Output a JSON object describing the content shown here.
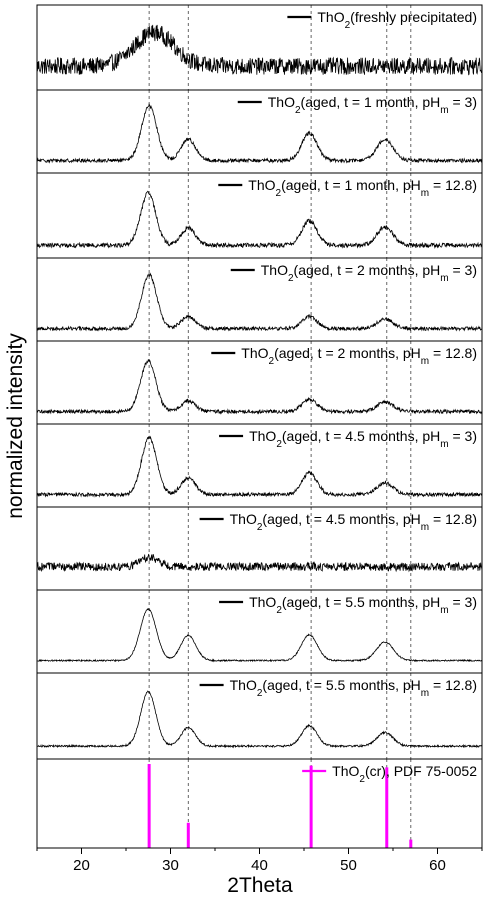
{
  "chart_data": {
    "type": "line",
    "xlabel": "2Theta",
    "ylabel": "normalized intensity",
    "xlim": [
      15,
      65
    ],
    "x_ticks": [
      20,
      30,
      40,
      50,
      60
    ],
    "reference_lines_x": [
      27.6,
      32.0,
      45.8,
      54.3,
      57.0
    ],
    "series": [
      {
        "name": "ThO2(freshly precipitated)",
        "label_parts": [
          "ThO",
          "2",
          "(freshly precipitated)"
        ],
        "peaks": [
          {
            "pos": 28.2,
            "height": 0.55,
            "width": 2.2
          }
        ],
        "noise": 0.14,
        "baseline": 0.28
      },
      {
        "name": "ThO2(aged, t = 1 month, pHm = 3)",
        "label_parts": [
          "ThO",
          "2",
          "(aged, t = 1 month, pH",
          "m",
          " = 3)"
        ],
        "peaks": [
          {
            "pos": 27.6,
            "height": 0.92,
            "width": 0.85
          },
          {
            "pos": 32.0,
            "height": 0.36,
            "width": 0.8
          },
          {
            "pos": 45.6,
            "height": 0.46,
            "width": 0.85
          },
          {
            "pos": 54.1,
            "height": 0.36,
            "width": 0.9
          }
        ],
        "noise": 0.03,
        "baseline": 0.15
      },
      {
        "name": "ThO2(aged, t = 1 month, pHm = 12.8)",
        "label_parts": [
          "ThO",
          "2",
          "(aged, t = 1 month, pH",
          "m",
          " = 12.8)"
        ],
        "peaks": [
          {
            "pos": 27.5,
            "height": 0.85,
            "width": 0.85
          },
          {
            "pos": 32.0,
            "height": 0.28,
            "width": 0.8
          },
          {
            "pos": 45.6,
            "height": 0.4,
            "width": 0.85
          },
          {
            "pos": 54.1,
            "height": 0.3,
            "width": 0.9
          }
        ],
        "noise": 0.035,
        "baseline": 0.15
      },
      {
        "name": "ThO2(aged, t = 2 months, pHm = 3)",
        "label_parts": [
          "ThO",
          "2",
          "(aged, t = 2 months, pH",
          "m",
          " = 3)"
        ],
        "peaks": [
          {
            "pos": 27.6,
            "height": 0.9,
            "width": 0.85
          },
          {
            "pos": 32.0,
            "height": 0.2,
            "width": 0.8
          },
          {
            "pos": 45.6,
            "height": 0.2,
            "width": 0.85
          },
          {
            "pos": 54.1,
            "height": 0.16,
            "width": 0.9
          }
        ],
        "noise": 0.03,
        "baseline": 0.15
      },
      {
        "name": "ThO2(aged, t = 2 months, pHm = 12.8)",
        "label_parts": [
          "ThO",
          "2",
          "(aged, t = 2 months, pH",
          "m",
          " = 12.8)"
        ],
        "peaks": [
          {
            "pos": 27.5,
            "height": 0.85,
            "width": 0.85
          },
          {
            "pos": 32.0,
            "height": 0.18,
            "width": 0.8
          },
          {
            "pos": 45.6,
            "height": 0.2,
            "width": 0.85
          },
          {
            "pos": 54.1,
            "height": 0.16,
            "width": 0.9
          }
        ],
        "noise": 0.03,
        "baseline": 0.15
      },
      {
        "name": "ThO2(aged, t = 4.5 months, pHm = 3)",
        "label_parts": [
          "ThO",
          "2",
          "(aged, t = 4.5 months, pH",
          "m",
          " = 3)"
        ],
        "peaks": [
          {
            "pos": 27.6,
            "height": 0.95,
            "width": 0.85
          },
          {
            "pos": 32.0,
            "height": 0.28,
            "width": 0.8
          },
          {
            "pos": 45.6,
            "height": 0.36,
            "width": 0.85
          },
          {
            "pos": 54.1,
            "height": 0.2,
            "width": 0.9
          }
        ],
        "noise": 0.03,
        "baseline": 0.15
      },
      {
        "name": "ThO2(aged, t = 4.5 months, pHm = 12.8)",
        "label_parts": [
          "ThO",
          "2",
          "(aged, t = 4.5 months, pH",
          "m",
          " = 12.8)"
        ],
        "peaks": [
          {
            "pos": 27.6,
            "height": 0.16,
            "width": 1.0
          }
        ],
        "noise": 0.07,
        "baseline": 0.28
      },
      {
        "name": "ThO2(aged, t = 5.5 months, pHm = 3)",
        "label_parts": [
          "ThO",
          "2",
          "(aged, t = 5.5 months, pH",
          "m",
          " = 3)"
        ],
        "peaks": [
          {
            "pos": 27.5,
            "height": 0.86,
            "width": 0.9
          },
          {
            "pos": 32.0,
            "height": 0.42,
            "width": 0.85
          },
          {
            "pos": 45.6,
            "height": 0.43,
            "width": 0.9
          },
          {
            "pos": 54.1,
            "height": 0.31,
            "width": 0.95
          }
        ],
        "noise": 0.012,
        "baseline": 0.15
      },
      {
        "name": "ThO2(aged, t = 5.5 months, pHm = 12.8)",
        "label_parts": [
          "ThO",
          "2",
          "(aged, t = 5.5 months, pH",
          "m",
          " = 12.8)"
        ],
        "peaks": [
          {
            "pos": 27.5,
            "height": 0.88,
            "width": 0.85
          },
          {
            "pos": 32.0,
            "height": 0.3,
            "width": 0.8
          },
          {
            "pos": 45.6,
            "height": 0.33,
            "width": 0.85
          },
          {
            "pos": 54.1,
            "height": 0.22,
            "width": 0.9
          }
        ],
        "noise": 0.015,
        "baseline": 0.15
      }
    ],
    "reference": {
      "name": "ThO2(cr), PDF 75-0052",
      "label_parts": [
        "ThO",
        "2",
        "(cr), PDF 75-0052"
      ],
      "color": "#ff00ff",
      "sticks": [
        {
          "x": 27.6,
          "y": 1.0
        },
        {
          "x": 32.0,
          "y": 0.3
        },
        {
          "x": 45.8,
          "y": 0.98
        },
        {
          "x": 54.3,
          "y": 0.96
        },
        {
          "x": 57.0,
          "y": 0.1
        }
      ]
    },
    "colors": {
      "line": "#000000",
      "ref_line": "#555555",
      "frame": "#000000"
    }
  }
}
